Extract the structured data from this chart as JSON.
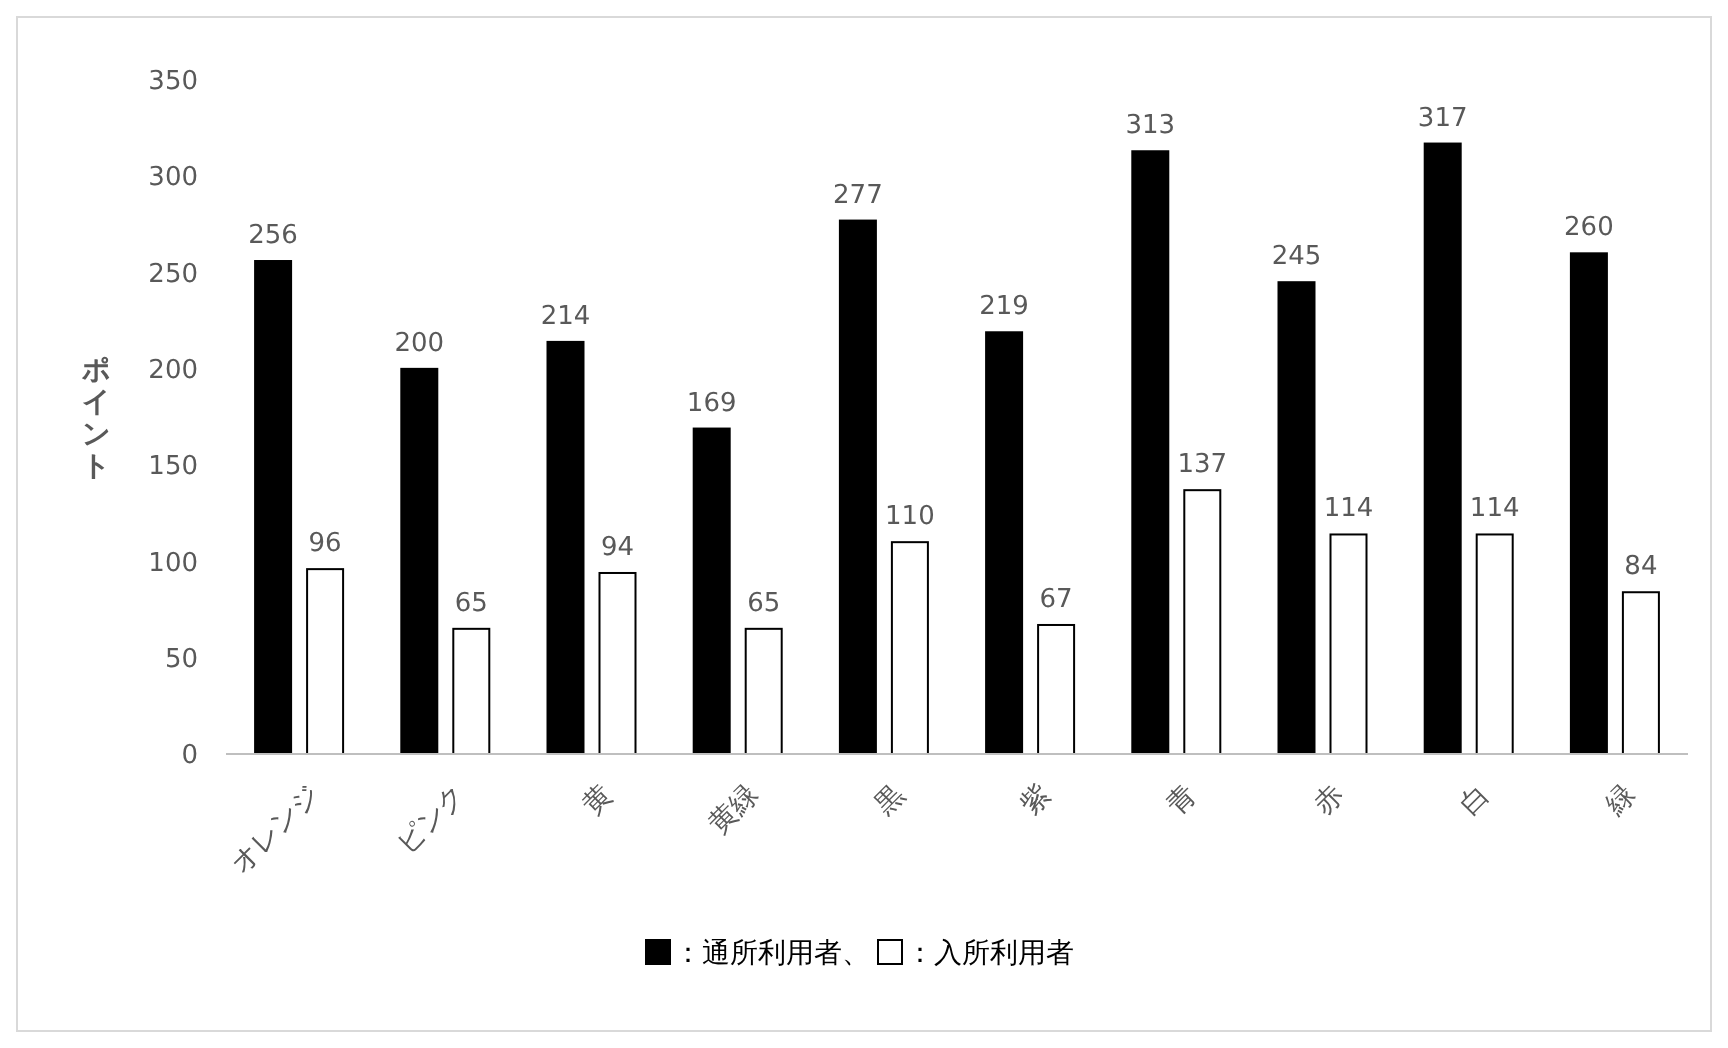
{
  "chart_data": {
    "type": "bar",
    "ylabel": "ポイント",
    "categories": [
      "オレンジ",
      "ピンク",
      "黄",
      "黄緑",
      "黒",
      "紫",
      "青",
      "赤",
      "白",
      "緑"
    ],
    "series": [
      {
        "name": "：通所利用者、",
        "color": "#000000",
        "values": [
          256,
          200,
          214,
          169,
          277,
          219,
          313,
          245,
          317,
          260
        ]
      },
      {
        "name": "：入所利用者",
        "color": "#ffffff",
        "values": [
          96,
          65,
          94,
          65,
          110,
          67,
          137,
          114,
          114,
          84
        ]
      }
    ],
    "ylim": [
      0,
      350
    ],
    "yticks": [
      0,
      50,
      100,
      150,
      200,
      250,
      300,
      350
    ],
    "grid": false,
    "legend": "bottom",
    "data_labels": true
  }
}
